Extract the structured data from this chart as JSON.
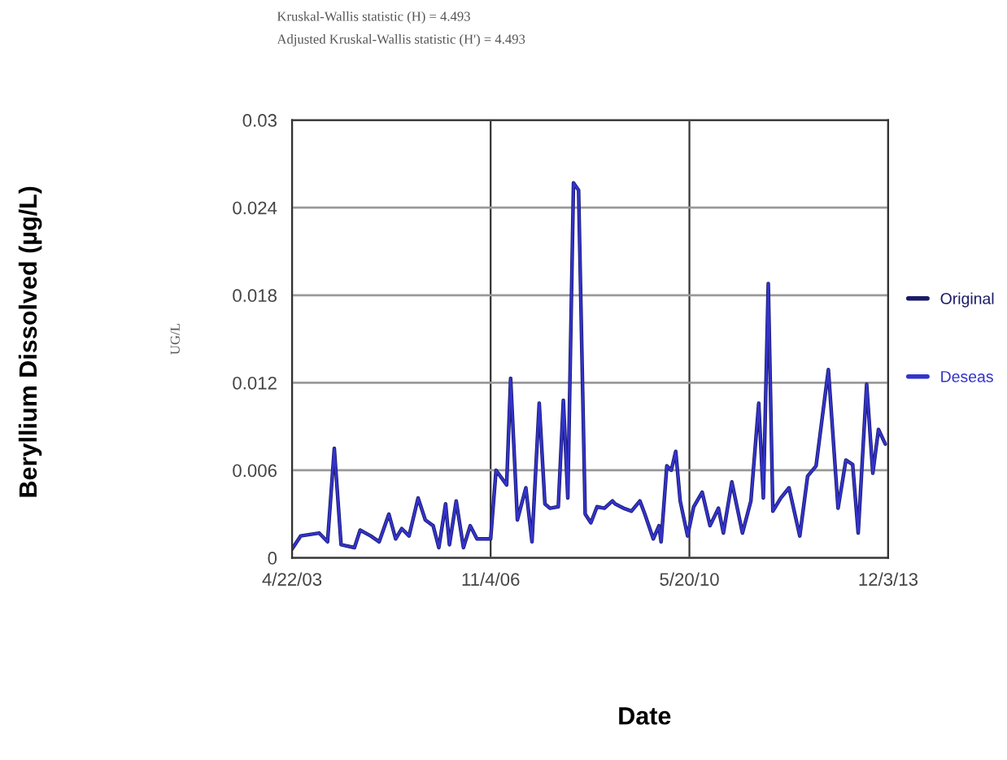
{
  "chart_data": {
    "type": "line",
    "ylabel": "UG/L",
    "annotations": [
      "Kruskal-Wallis statistic (H) = 4.493",
      "Adjusted Kruskal-Wallis statistic (H') = 4.493",
      "Beryllium Dissolved (µg/L)",
      "Date"
    ],
    "x": [
      "2003-04-22",
      "2003-06-17",
      "2003-10-15",
      "2003-12-09",
      "2004-01-22",
      "2004-03-06",
      "2004-06-01",
      "2004-07-08",
      "2004-09-15",
      "2004-11-09",
      "2005-01-11",
      "2005-02-24",
      "2005-04-05",
      "2005-05-22",
      "2005-07-20",
      "2005-09-05",
      "2005-10-26",
      "2005-12-02",
      "2006-01-15",
      "2006-02-09",
      "2006-03-25",
      "2006-05-11",
      "2006-06-24",
      "2006-08-07",
      "2006-11-04",
      "2006-12-09",
      "2007-02-16",
      "2007-03-14",
      "2007-04-27",
      "2007-06-21",
      "2007-07-31",
      "2007-09-16",
      "2007-10-23",
      "2007-11-25",
      "2008-01-18",
      "2008-02-20",
      "2008-03-20",
      "2008-04-26",
      "2008-05-29",
      "2008-07-11",
      "2008-08-17",
      "2008-09-26",
      "2008-11-13",
      "2009-01-04",
      "2009-01-22",
      "2009-03-18",
      "2009-05-08",
      "2009-07-02",
      "2009-08-03",
      "2009-09-27",
      "2009-11-03",
      "2009-11-17",
      "2009-12-24",
      "2010-01-22",
      "2010-02-20",
      "2010-03-21",
      "2010-05-08",
      "2010-06-17",
      "2010-08-11",
      "2010-10-01",
      "2010-11-25",
      "2010-12-27",
      "2011-02-20",
      "2011-04-30",
      "2011-06-24",
      "2011-08-14",
      "2011-09-13",
      "2011-10-15",
      "2011-11-14",
      "2012-01-04",
      "2012-02-27",
      "2012-05-07",
      "2012-06-27",
      "2012-08-21",
      "2012-11-09",
      "2013-01-11",
      "2013-03-03",
      "2013-04-16",
      "2013-05-22",
      "2013-07-16",
      "2013-08-25",
      "2013-10-01",
      "2013-11-14"
    ],
    "series": [
      {
        "name": "Original",
        "color": "#1a1a66",
        "values": [
          0.0006,
          0.0015,
          0.0017,
          0.0011,
          0.0075,
          0.0009,
          0.0007,
          0.0019,
          0.0015,
          0.0011,
          0.003,
          0.0013,
          0.002,
          0.0015,
          0.0041,
          0.0026,
          0.0022,
          0.0007,
          0.0037,
          0.0009,
          0.0039,
          0.0007,
          0.0022,
          0.0013,
          0.0013,
          0.006,
          0.005,
          0.0123,
          0.0026,
          0.0048,
          0.0011,
          0.0106,
          0.0037,
          0.0034,
          0.0035,
          0.0108,
          0.0041,
          0.0257,
          0.0252,
          0.003,
          0.0024,
          0.0035,
          0.0034,
          0.0039,
          0.0037,
          0.0034,
          0.0032,
          0.0039,
          0.003,
          0.0013,
          0.0022,
          0.0011,
          0.0063,
          0.006,
          0.0073,
          0.0039,
          0.0015,
          0.0035,
          0.0045,
          0.0022,
          0.0034,
          0.0017,
          0.0052,
          0.0017,
          0.0039,
          0.0106,
          0.0041,
          0.0188,
          0.0032,
          0.0041,
          0.0048,
          0.0015,
          0.0056,
          0.0063,
          0.0129,
          0.0034,
          0.0067,
          0.0064,
          0.0017,
          0.0119,
          0.0058,
          0.0088,
          0.0078
        ]
      },
      {
        "name": "Deseas",
        "color": "#3333cc",
        "values": [
          0.0006,
          0.0015,
          0.0017,
          0.0011,
          0.0075,
          0.0009,
          0.0007,
          0.0019,
          0.0015,
          0.0011,
          0.003,
          0.0013,
          0.002,
          0.0015,
          0.0041,
          0.0026,
          0.0022,
          0.0007,
          0.0037,
          0.0009,
          0.0039,
          0.0007,
          0.0022,
          0.0013,
          0.0013,
          0.006,
          0.005,
          0.0123,
          0.0026,
          0.0048,
          0.0011,
          0.0106,
          0.0037,
          0.0034,
          0.0035,
          0.0108,
          0.0041,
          0.0257,
          0.0252,
          0.003,
          0.0024,
          0.0035,
          0.0034,
          0.0039,
          0.0037,
          0.0034,
          0.0032,
          0.0039,
          0.003,
          0.0013,
          0.0022,
          0.0011,
          0.0063,
          0.006,
          0.0073,
          0.0039,
          0.0015,
          0.0035,
          0.0045,
          0.0022,
          0.0034,
          0.0017,
          0.0052,
          0.0017,
          0.0039,
          0.0106,
          0.0041,
          0.0188,
          0.0032,
          0.0041,
          0.0048,
          0.0015,
          0.0056,
          0.0063,
          0.0129,
          0.0034,
          0.0067,
          0.0064,
          0.0017,
          0.0119,
          0.0058,
          0.0088,
          0.0078
        ]
      }
    ],
    "xlim": [
      "2003-04-22",
      "2013-12-03"
    ],
    "xticks": [
      {
        "value": "2003-04-22",
        "label": "4/22/03"
      },
      {
        "value": "2006-11-04",
        "label": "11/4/06"
      },
      {
        "value": "2010-05-20",
        "label": "5/20/10"
      },
      {
        "value": "2013-12-03",
        "label": "12/3/13"
      }
    ],
    "ylim": [
      0,
      0.03
    ],
    "yticks": [
      0,
      0.006,
      0.012,
      0.018,
      0.024,
      0.03
    ],
    "grid": true,
    "legend": "right",
    "line_style": "solid",
    "marker": "none"
  }
}
